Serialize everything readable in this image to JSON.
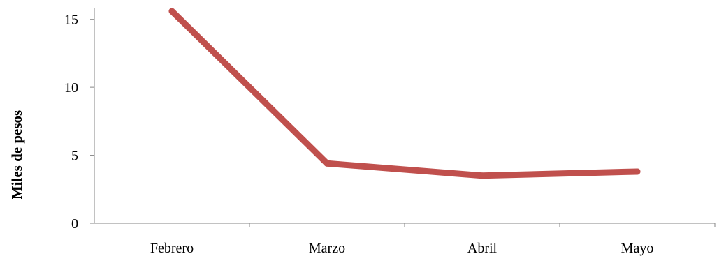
{
  "chart_data": {
    "type": "line",
    "categories": [
      "Febrero",
      "Marzo",
      "Abril",
      "Mayo"
    ],
    "series": [
      {
        "values": [
          15.6,
          4.4,
          3.5,
          3.8
        ],
        "color": "#C0504D"
      }
    ],
    "title": "",
    "xlabel": "",
    "ylabel": "Miles de pesos",
    "ylim": [
      0,
      15.6
    ],
    "yticks": [
      0,
      5,
      10,
      15
    ],
    "ytick_labels": [
      "0",
      "5",
      "10",
      "15"
    ],
    "grid": false,
    "legend": "none",
    "axis_color": "#868686"
  }
}
